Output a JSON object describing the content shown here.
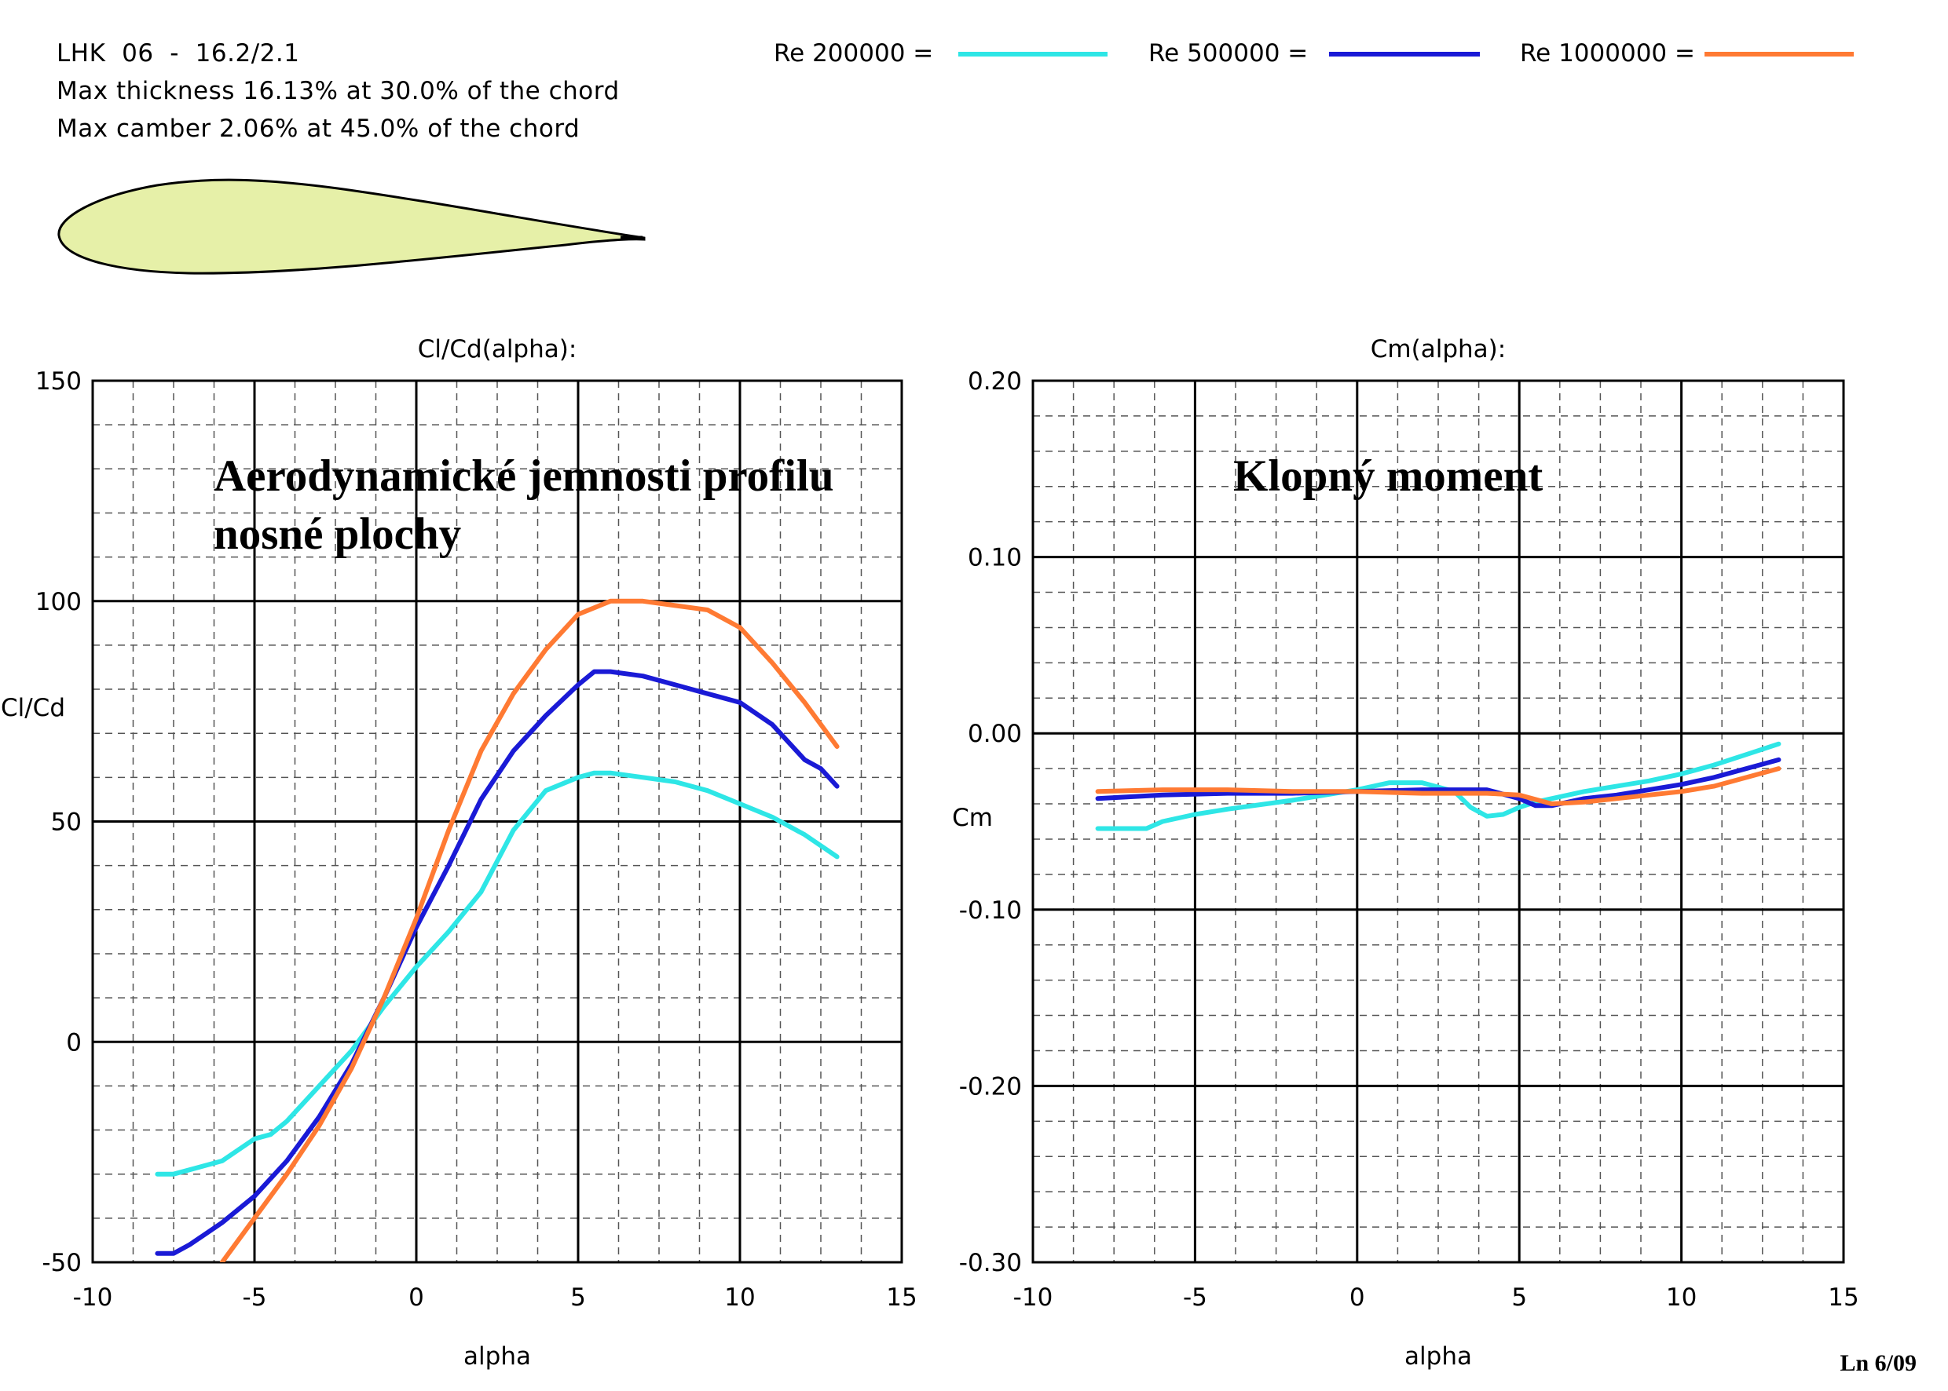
{
  "header": {
    "profile_name": "LHK  06  -  16.2/2.1",
    "thickness_text": "Max thickness 16.13% at 30.0% of the chord",
    "camber_text": "Max camber 2.06% at 45.0% of the chord"
  },
  "legend": [
    {
      "label": "Re 200000 =",
      "color": "#2ee6e6"
    },
    {
      "label": "Re 500000 =",
      "color": "#1a1ad6"
    },
    {
      "label": "Re 1000000 =",
      "color": "#ff7a33"
    }
  ],
  "airfoil": {
    "fill": "#e6f0a8",
    "stroke": "#000000"
  },
  "annotations": {
    "left_line1": "Aerodynamické jemnosti profilu",
    "left_line2": "nosné plochy",
    "right": "Klopný moment"
  },
  "footer": "Ln 6/09",
  "chart_data": [
    {
      "type": "line",
      "title": "Cl/Cd(alpha):",
      "xlabel": "alpha",
      "ylabel": "Cl/Cd",
      "xlim": [
        -10,
        15
      ],
      "ylim": [
        -50,
        150
      ],
      "xticks": [
        "-10",
        "-5",
        "0",
        "5",
        "10",
        "15"
      ],
      "yticks": [
        "-50",
        "0",
        "50",
        "100",
        "150"
      ],
      "grid": true,
      "series": [
        {
          "name": "Re 200000",
          "color": "#2ee6e6",
          "x": [
            -8,
            -7.5,
            -6,
            -5,
            -4.5,
            -4,
            -3,
            -2,
            -1,
            0,
            1,
            2,
            3,
            4,
            5,
            5.5,
            6,
            7,
            8,
            9,
            10,
            11,
            12,
            13
          ],
          "y": [
            -30,
            -30,
            -27,
            -22,
            -21,
            -18,
            -10,
            -2,
            8,
            17,
            25,
            34,
            48,
            57,
            60,
            61,
            61,
            60,
            59,
            57,
            54,
            51,
            47,
            42
          ]
        },
        {
          "name": "Re 500000",
          "color": "#1a1ad6",
          "x": [
            -8,
            -7.5,
            -7,
            -6,
            -5,
            -4,
            -3,
            -2,
            -1,
            0,
            1,
            2,
            3,
            4,
            5,
            5.5,
            6,
            7,
            8,
            9,
            10,
            11,
            12,
            12.5,
            13
          ],
          "y": [
            -48,
            -48,
            -46,
            -41,
            -35,
            -27,
            -17,
            -5,
            10,
            26,
            40,
            55,
            66,
            74,
            81,
            84,
            84,
            83,
            81,
            79,
            77,
            72,
            64,
            62,
            58
          ]
        },
        {
          "name": "Re 1000000",
          "color": "#ff7a33",
          "x": [
            -6,
            -5,
            -4,
            -3,
            -2,
            -1,
            0,
            1,
            2,
            3,
            4,
            5,
            6,
            7,
            8,
            9,
            10,
            11,
            12,
            13
          ],
          "y": [
            -50,
            -40,
            -30,
            -19,
            -6,
            10,
            28,
            48,
            66,
            79,
            89,
            97,
            100,
            100,
            99,
            98,
            94,
            86,
            77,
            67
          ]
        }
      ]
    },
    {
      "type": "line",
      "title": "Cm(alpha):",
      "xlabel": "alpha",
      "ylabel": "Cm",
      "xlim": [
        -10,
        15
      ],
      "ylim": [
        -0.3,
        0.2
      ],
      "xticks": [
        "-10",
        "-5",
        "0",
        "5",
        "10",
        "15"
      ],
      "yticks": [
        "-0.30",
        "-0.20",
        "-0.10",
        "0.00",
        "0.10",
        "0.20"
      ],
      "grid": true,
      "series": [
        {
          "name": "Re 200000",
          "color": "#2ee6e6",
          "x": [
            -8,
            -6.5,
            -6,
            -5,
            -4,
            -2,
            0,
            1,
            2,
            3,
            3.5,
            4,
            4.5,
            5,
            5.5,
            6,
            7,
            8,
            9,
            10,
            11,
            12,
            13
          ],
          "y": [
            -0.054,
            -0.054,
            -0.05,
            -0.046,
            -0.043,
            -0.038,
            -0.032,
            -0.028,
            -0.028,
            -0.033,
            -0.042,
            -0.047,
            -0.046,
            -0.042,
            -0.039,
            -0.037,
            -0.033,
            -0.03,
            -0.027,
            -0.023,
            -0.018,
            -0.012,
            -0.006
          ]
        },
        {
          "name": "Re 500000",
          "color": "#1a1ad6",
          "x": [
            -8,
            -6,
            -4,
            -2,
            0,
            2,
            4,
            5,
            5.5,
            6,
            7,
            8,
            9,
            10,
            11,
            12,
            13
          ],
          "y": [
            -0.037,
            -0.035,
            -0.034,
            -0.034,
            -0.033,
            -0.032,
            -0.032,
            -0.037,
            -0.041,
            -0.041,
            -0.037,
            -0.035,
            -0.032,
            -0.029,
            -0.025,
            -0.02,
            -0.015
          ]
        },
        {
          "name": "Re 1000000",
          "color": "#ff7a33",
          "x": [
            -8,
            -6,
            -4,
            -2,
            0,
            2,
            4,
            5,
            6,
            7,
            8,
            9,
            10,
            11,
            12,
            13
          ],
          "y": [
            -0.033,
            -0.032,
            -0.032,
            -0.033,
            -0.033,
            -0.034,
            -0.034,
            -0.035,
            -0.04,
            -0.039,
            -0.037,
            -0.035,
            -0.033,
            -0.03,
            -0.025,
            -0.02
          ]
        }
      ]
    }
  ]
}
